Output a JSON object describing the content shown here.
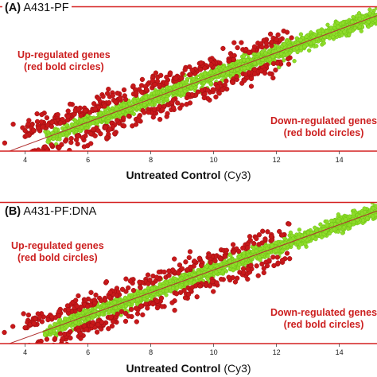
{
  "chart_data": [
    {
      "type": "scatter",
      "panel_tag": "(A)",
      "panel_name": "A431-PF",
      "annotations": {
        "up": [
          "Up-regulated genes",
          "(red bold circles)"
        ],
        "down": [
          "Down-regulated genes",
          "(red bold circles)"
        ]
      },
      "xlabel_bold": "Untreated Control",
      "xlabel_rest": " (Cy3)",
      "x_ticks": [
        4,
        6,
        8,
        10,
        12,
        14
      ],
      "xlim": [
        3.2,
        15.2
      ],
      "ylim": [
        3.5,
        16
      ],
      "trend_line": {
        "from": [
          3.2,
          3.2
        ],
        "to": [
          15.2,
          15.2
        ]
      },
      "threshold_y": 3.6,
      "series": [
        {
          "color": "#8fdc2a",
          "values": []
        },
        {
          "color": "#c8181a",
          "values": []
        }
      ]
    },
    {
      "type": "scatter",
      "panel_tag": "(B)",
      "panel_name": "A431-PF:DNA",
      "annotations": {
        "up": [
          "Up-regulated genes",
          "(red bold circles)"
        ],
        "down": [
          "Down-regulated genes",
          "(red bold circles)"
        ]
      },
      "xlabel_bold": "Untreated Control",
      "xlabel_rest": " (Cy3)",
      "x_ticks": [
        4,
        6,
        8,
        10,
        12,
        14
      ],
      "xlim": [
        3.2,
        15.2
      ],
      "ylim": [
        3.5,
        16
      ],
      "trend_line": {
        "from": [
          3.2,
          3.2
        ],
        "to": [
          15.2,
          15.2
        ]
      },
      "threshold_y": 3.6,
      "series": [
        {
          "color": "#8fdc2a",
          "values": []
        },
        {
          "color": "#c8181a",
          "values": []
        }
      ]
    }
  ]
}
